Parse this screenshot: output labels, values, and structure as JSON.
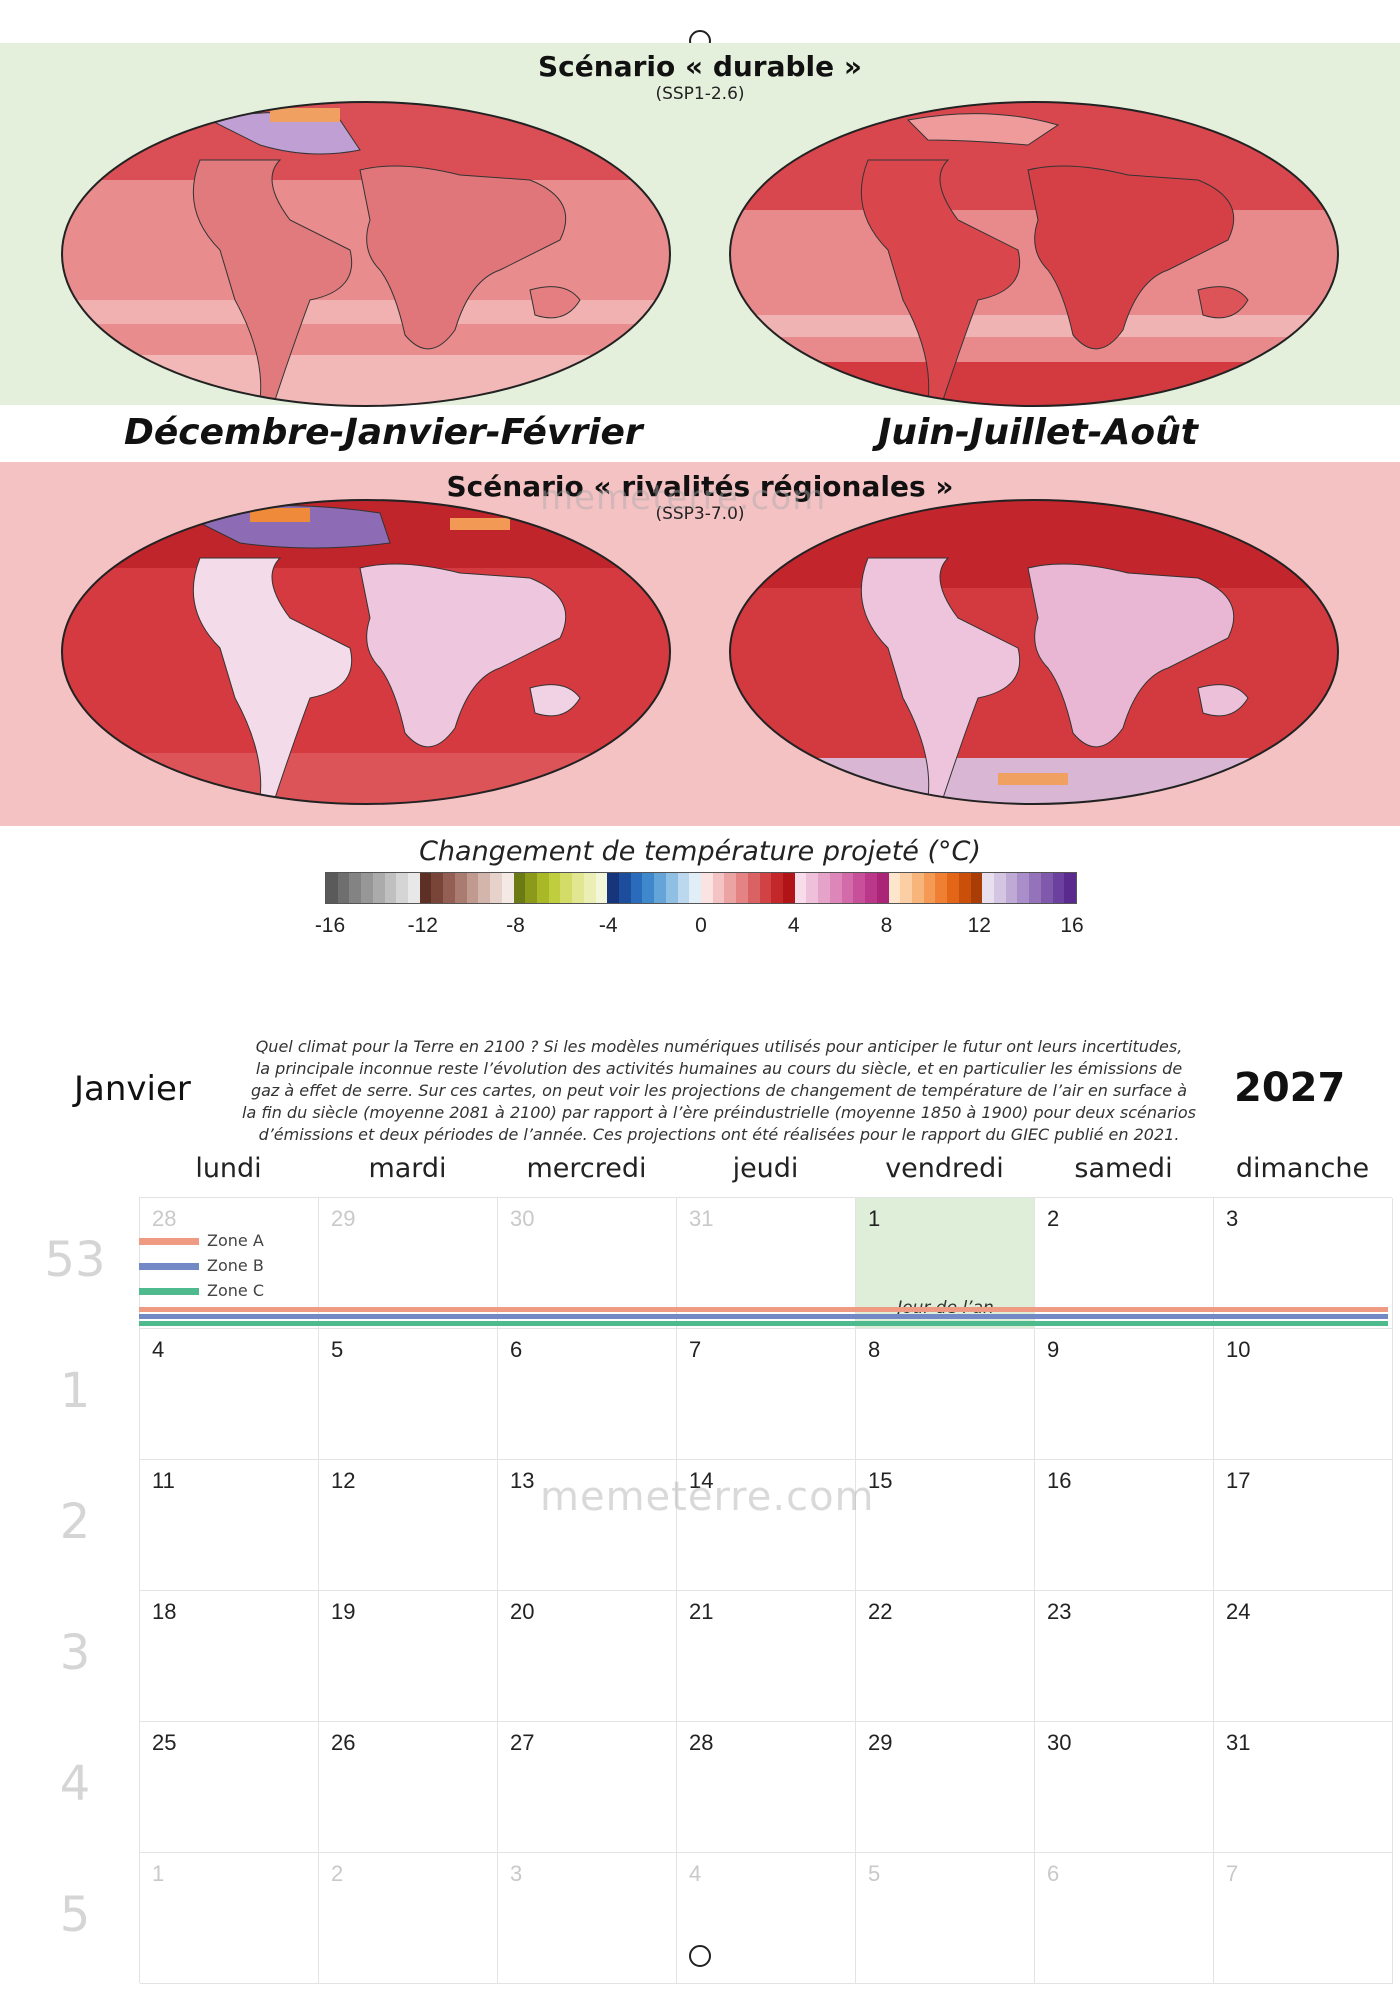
{
  "top_band": {
    "title": "Scénario « durable »",
    "subtitle": "(SSP1-2.6)",
    "color": "#e4efdc"
  },
  "bottom_band": {
    "title": "Scénario « rivalités régionales »",
    "subtitle": "(SSP3-7.0)",
    "color": "#f5c2c4"
  },
  "seasons": {
    "left": "Décembre-Janvier-Février",
    "right": "Juin-Juillet-Août"
  },
  "colorbar": {
    "title": "Changement de température projeté (°C)",
    "ticks": [
      "-16",
      "-12",
      "-8",
      "-4",
      "0",
      "4",
      "8",
      "12",
      "16"
    ],
    "swatches": [
      "#5a5a5a",
      "#6f6f6f",
      "#838383",
      "#979797",
      "#ababab",
      "#c0c0c0",
      "#d5d5d5",
      "#e8e8e8",
      "#5e2f24",
      "#7a4539",
      "#935f54",
      "#aa7b71",
      "#c0998f",
      "#d4b5ac",
      "#e7d2cb",
      "#f4e9e5",
      "#6b7a12",
      "#8b9a1a",
      "#a8b826",
      "#c0cd3f",
      "#d2dc67",
      "#e0e790",
      "#ebefb5",
      "#f4f6d9",
      "#16357a",
      "#1d4e9e",
      "#2a6bbb",
      "#3f88cc",
      "#64a4d8",
      "#8fbfe3",
      "#bcd8ee",
      "#e2eef7",
      "#fbe3e3",
      "#f4c4c4",
      "#eca3a4",
      "#e48384",
      "#db6264",
      "#d14244",
      "#c42729",
      "#b01417",
      "#f7dcea",
      "#efc0da",
      "#e6a3ca",
      "#dd86b9",
      "#d36aa9",
      "#c84f99",
      "#bb3789",
      "#aa2478",
      "#fde6cc",
      "#fbcfa3",
      "#f8b57b",
      "#f49a55",
      "#ee7f33",
      "#e36517",
      "#c94f0a",
      "#a83e06",
      "#e8e0ef",
      "#d4c6e3",
      "#bfaad6",
      "#aa8ec9",
      "#9573bb",
      "#8059ad",
      "#6c409e",
      "#5a2a8e"
    ]
  },
  "calendar": {
    "month": "Janvier",
    "year": "2027",
    "description": [
      "Quel climat pour la Terre en 2100 ? Si les modèles numériques utilisés pour anticiper le futur ont leurs incertitudes,",
      "la principale inconnue reste l’évolution des activités humaines au cours du siècle, et en particulier les émissions de",
      "gaz à effet de serre. Sur ces cartes, on peut voir les projections de changement de température de l’air en surface à",
      "la fin du siècle (moyenne 2081 à 2100) par rapport à l’ère préindustrielle (moyenne 1850 à 1900) pour deux scénarios",
      "d’émissions et deux périodes de l’année. Ces projections ont été réalisées pour le rapport du GIEC publié en 2021."
    ],
    "day_names": [
      "lundi",
      "mardi",
      "mercredi",
      "jeudi",
      "vendredi",
      "samedi",
      "dimanche"
    ],
    "week_numbers": [
      "53",
      "1",
      "2",
      "3",
      "4",
      "5"
    ],
    "weeks": [
      [
        "28",
        "29",
        "30",
        "31",
        "1",
        "2",
        "3"
      ],
      [
        "4",
        "5",
        "6",
        "7",
        "8",
        "9",
        "10"
      ],
      [
        "11",
        "12",
        "13",
        "14",
        "15",
        "16",
        "17"
      ],
      [
        "18",
        "19",
        "20",
        "21",
        "22",
        "23",
        "24"
      ],
      [
        "25",
        "26",
        "27",
        "28",
        "29",
        "30",
        "31"
      ],
      [
        "1",
        "2",
        "3",
        "4",
        "5",
        "6",
        "7"
      ]
    ],
    "holiday": "Jour de l’an",
    "holiday_color": "#dfeed8",
    "zones": [
      {
        "label": "Zone A",
        "color": "#ef9a82"
      },
      {
        "label": "Zone B",
        "color": "#7289c6"
      },
      {
        "label": "Zone C",
        "color": "#4fba8e"
      }
    ]
  },
  "watermark": "memeterre.com"
}
